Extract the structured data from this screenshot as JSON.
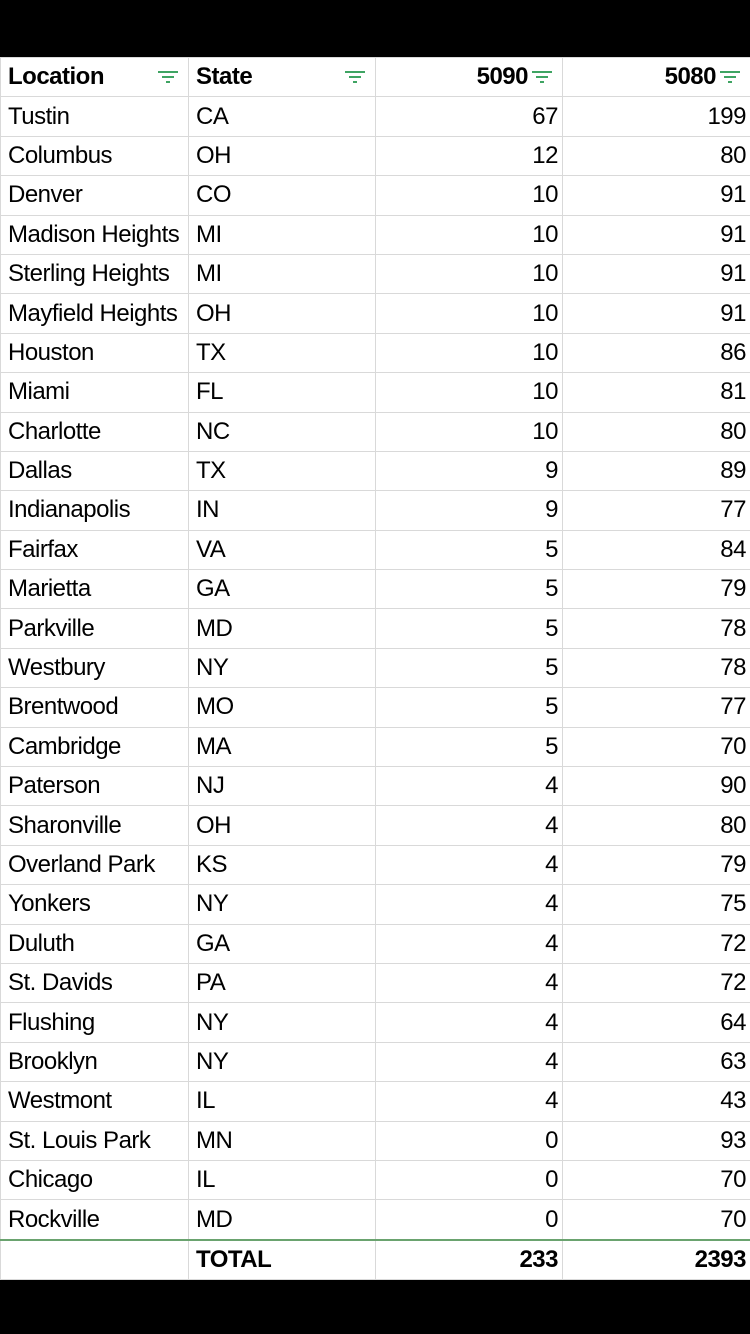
{
  "header": {
    "location": "Location",
    "state": "State",
    "col5090": "5090",
    "col5080": "5080"
  },
  "filter_icon_color": "#3fa463",
  "rows": [
    [
      "Tustin",
      "CA",
      67,
      199
    ],
    [
      "Columbus",
      "OH",
      12,
      80
    ],
    [
      "Denver",
      "CO",
      10,
      91
    ],
    [
      "Madison Heights",
      "MI",
      10,
      91
    ],
    [
      "Sterling Heights",
      "MI",
      10,
      91
    ],
    [
      "Mayfield Heights",
      "OH",
      10,
      91
    ],
    [
      "Houston",
      "TX",
      10,
      86
    ],
    [
      "Miami",
      "FL",
      10,
      81
    ],
    [
      "Charlotte",
      "NC",
      10,
      80
    ],
    [
      "Dallas",
      "TX",
      9,
      89
    ],
    [
      "Indianapolis",
      "IN",
      9,
      77
    ],
    [
      "Fairfax",
      "VA",
      5,
      84
    ],
    [
      "Marietta",
      "GA",
      5,
      79
    ],
    [
      "Parkville",
      "MD",
      5,
      78
    ],
    [
      "Westbury",
      "NY",
      5,
      78
    ],
    [
      "Brentwood",
      "MO",
      5,
      77
    ],
    [
      "Cambridge",
      "MA",
      5,
      70
    ],
    [
      "Paterson",
      "NJ",
      4,
      90
    ],
    [
      "Sharonville",
      "OH",
      4,
      80
    ],
    [
      "Overland Park",
      "KS",
      4,
      79
    ],
    [
      "Yonkers",
      "NY",
      4,
      75
    ],
    [
      "Duluth",
      "GA",
      4,
      72
    ],
    [
      "St. Davids",
      "PA",
      4,
      72
    ],
    [
      "Flushing",
      "NY",
      4,
      64
    ],
    [
      "Brooklyn",
      "NY",
      4,
      63
    ],
    [
      "Westmont",
      "IL",
      4,
      43
    ],
    [
      "St. Louis Park",
      "MN",
      0,
      93
    ],
    [
      "Chicago",
      "IL",
      0,
      70
    ],
    [
      "Rockville",
      "MD",
      0,
      70
    ]
  ],
  "total": {
    "label": "TOTAL",
    "col5090": 233,
    "col5080": 2393
  }
}
